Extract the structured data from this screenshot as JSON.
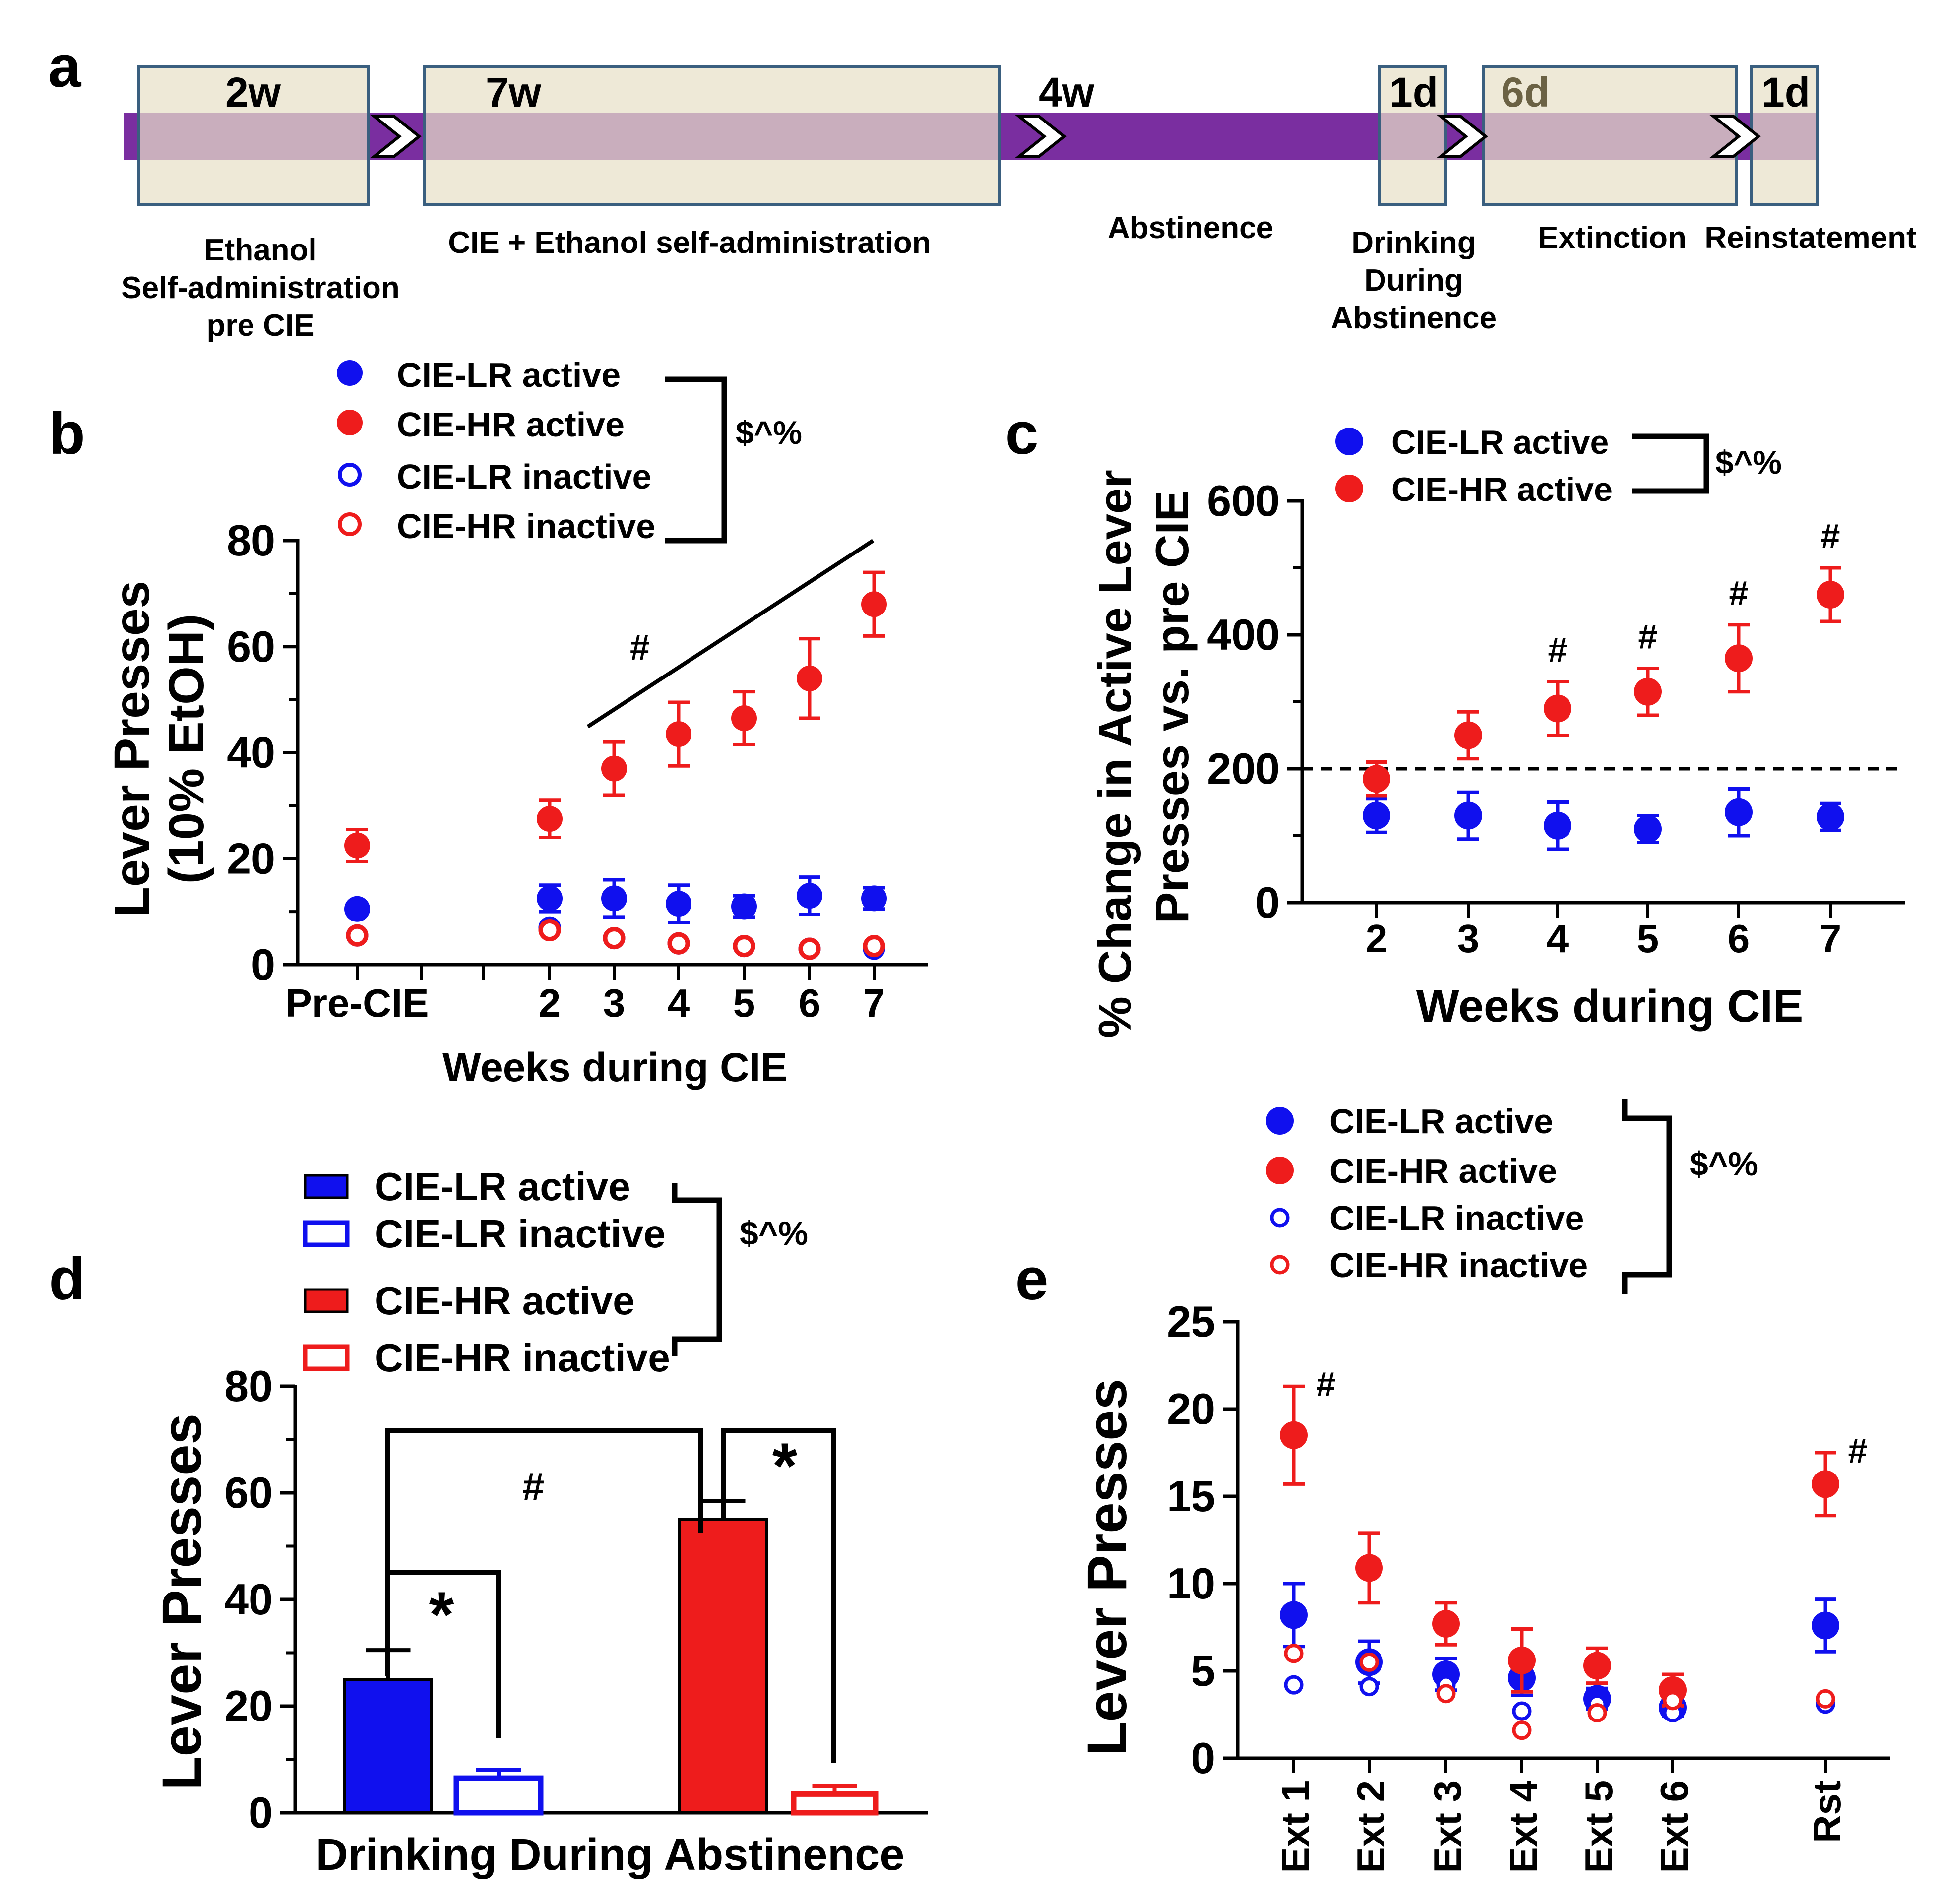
{
  "colors": {
    "blue": "#1010ee",
    "red": "#ee1c1c",
    "timeline_bar": "#7a2ea0",
    "box_fill": "#e8e0c8",
    "box_stroke": "#3a5f7f"
  },
  "panel_a": {
    "panel_label": "a",
    "stages": [
      {
        "duration": "2w",
        "label_lines": [
          "Ethanol",
          "Self-administration",
          "pre CIE"
        ]
      },
      {
        "duration": "7w",
        "label_lines": [
          "CIE + Ethanol self-administration"
        ]
      },
      {
        "duration": "4w",
        "label_lines": [
          "Abstinence"
        ]
      },
      {
        "duration": "1d",
        "label_lines": [
          "Drinking",
          "During",
          "Abstinence"
        ]
      },
      {
        "duration": "6d",
        "label_lines": [
          "Extinction"
        ]
      },
      {
        "duration": "1d",
        "label_lines": [
          "Reinstatement"
        ]
      }
    ]
  },
  "chart_data": [
    {
      "panel": "b",
      "type": "scatter",
      "ylabel_lines": [
        "Lever Presses",
        "(10% EtOH)"
      ],
      "xlabel": "Weeks during CIE",
      "categories": [
        "Pre-CIE",
        "2",
        "3",
        "4",
        "5",
        "6",
        "7"
      ],
      "yticks": [
        "0",
        "20",
        "40",
        "60",
        "80"
      ],
      "ylim": [
        0,
        80
      ],
      "series": [
        {
          "name": "CIE-LR active",
          "color": "#1010ee",
          "filled": true,
          "values": [
            10.5,
            12.5,
            12.5,
            11.5,
            11,
            13,
            12.5
          ],
          "errors": [
            0,
            2.5,
            3.5,
            3.5,
            2,
            3.5,
            2
          ]
        },
        {
          "name": "CIE-HR active",
          "color": "#ee1c1c",
          "filled": true,
          "values": [
            22.5,
            27.5,
            37,
            43.5,
            46.5,
            54,
            68
          ],
          "errors": [
            3,
            3.5,
            5,
            6,
            5,
            7.5,
            6
          ]
        },
        {
          "name": "CIE-LR inactive",
          "color": "#1010ee",
          "filled": false,
          "values": [
            5.5,
            7,
            5,
            4,
            3.5,
            3,
            3
          ],
          "errors": [
            0,
            0,
            0,
            0,
            0,
            0,
            0
          ]
        },
        {
          "name": "CIE-HR inactive",
          "color": "#ee1c1c",
          "filled": false,
          "values": [
            5.5,
            6.5,
            5,
            4,
            3.5,
            3,
            3.5
          ],
          "errors": [
            0,
            0,
            0,
            0,
            0,
            0,
            0
          ]
        }
      ],
      "legend_stat": "$^%",
      "annotation": "#"
    },
    {
      "panel": "c",
      "type": "scatter",
      "ylabel_lines": [
        "% Change in Active Lever",
        "Presses vs. pre CIE"
      ],
      "xlabel": "Weeks during CIE",
      "categories": [
        "2",
        "3",
        "4",
        "5",
        "6",
        "7"
      ],
      "yticks": [
        "0",
        "200",
        "400",
        "600"
      ],
      "ylim": [
        0,
        600
      ],
      "reference_line": 200,
      "series": [
        {
          "name": "CIE-LR active",
          "color": "#1010ee",
          "filled": true,
          "values": [
            130,
            130,
            115,
            110,
            135,
            128
          ],
          "errors": [
            25,
            35,
            35,
            20,
            35,
            20
          ]
        },
        {
          "name": "CIE-HR active",
          "color": "#ee1c1c",
          "filled": true,
          "values": [
            185,
            250,
            290,
            315,
            365,
            460
          ],
          "errors": [
            25,
            35,
            40,
            35,
            50,
            40
          ]
        }
      ],
      "markers": [
        "",
        "",
        "#",
        "#",
        "#",
        "#"
      ],
      "legend_stat": "$^%"
    },
    {
      "panel": "d",
      "type": "bar",
      "ylabel": "Lever Presses",
      "xlabel": "Drinking During Abstinence",
      "yticks": [
        "0",
        "20",
        "40",
        "60",
        "80"
      ],
      "ylim": [
        0,
        80
      ],
      "series": [
        {
          "name": "CIE-LR active",
          "color": "#1010ee",
          "filled": true,
          "value": 25,
          "error": 5.5
        },
        {
          "name": "CIE-LR inactive",
          "color": "#1010ee",
          "filled": false,
          "value": 6.5,
          "error": 1.5
        },
        {
          "name": "CIE-HR active",
          "color": "#ee1c1c",
          "filled": true,
          "value": 55,
          "error": 3.5
        },
        {
          "name": "CIE-HR inactive",
          "color": "#ee1c1c",
          "filled": false,
          "value": 3.5,
          "error": 1.5
        }
      ],
      "legend_stat": "$^%",
      "annotations": {
        "hash": "#",
        "star_lr": "*",
        "star_hr": "*"
      }
    },
    {
      "panel": "e",
      "type": "scatter",
      "ylabel": "Lever Presses",
      "categories": [
        "Ext 1",
        "Ext 2",
        "Ext 3",
        "Ext 4",
        "Ext 5",
        "Ext 6",
        "Rst"
      ],
      "yticks": [
        "0",
        "5",
        "10",
        "15",
        "20",
        "25"
      ],
      "ylim": [
        0,
        25
      ],
      "series": [
        {
          "name": "CIE-LR active",
          "color": "#1010ee",
          "filled": true,
          "values": [
            8.2,
            5.5,
            4.8,
            4.6,
            3.4,
            2.9,
            7.6
          ],
          "errors": [
            1.8,
            1.2,
            0.9,
            1,
            0.6,
            0.5,
            1.5
          ]
        },
        {
          "name": "CIE-HR active",
          "color": "#ee1c1c",
          "filled": true,
          "values": [
            18.5,
            10.9,
            7.7,
            5.6,
            5.3,
            3.9,
            15.7
          ],
          "errors": [
            2.8,
            2,
            1.2,
            1.8,
            1,
            0.9,
            1.8
          ]
        },
        {
          "name": "CIE-LR inactive",
          "color": "#1010ee",
          "filled": false,
          "values": [
            4.2,
            4.1,
            4.2,
            2.7,
            3.1,
            2.6,
            3.1
          ],
          "errors": [
            0,
            0,
            0,
            0,
            0,
            0,
            0
          ]
        },
        {
          "name": "CIE-HR inactive",
          "color": "#ee1c1c",
          "filled": false,
          "values": [
            6.0,
            5.5,
            3.7,
            1.6,
            2.6,
            3.3,
            3.4
          ],
          "errors": [
            0,
            0,
            0,
            0,
            0,
            0,
            0
          ]
        }
      ],
      "markers": [
        "#",
        "",
        "",
        "",
        "",
        "",
        "#"
      ],
      "legend_stat": "$^%"
    }
  ]
}
